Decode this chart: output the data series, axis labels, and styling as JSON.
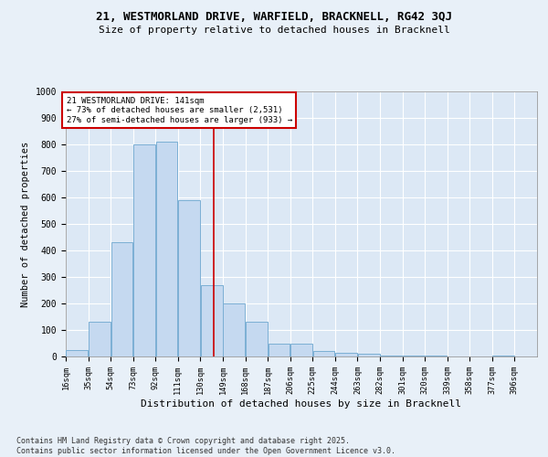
{
  "title1": "21, WESTMORLAND DRIVE, WARFIELD, BRACKNELL, RG42 3QJ",
  "title2": "Size of property relative to detached houses in Bracknell",
  "xlabel": "Distribution of detached houses by size in Bracknell",
  "ylabel": "Number of detached properties",
  "bar_color": "#c5d9f0",
  "bar_edge_color": "#7bafd4",
  "background_color": "#dce8f5",
  "grid_color": "#ffffff",
  "annotation_box_color": "#cc0000",
  "vline_color": "#cc0000",
  "fig_background": "#e8f0f8",
  "bins": [
    16,
    35,
    54,
    73,
    92,
    111,
    130,
    149,
    168,
    187,
    206,
    225,
    244,
    263,
    282,
    301,
    320,
    339,
    358,
    377,
    396
  ],
  "values": [
    25,
    130,
    430,
    800,
    810,
    590,
    270,
    200,
    130,
    50,
    50,
    20,
    15,
    10,
    5,
    3,
    3,
    0,
    0,
    2
  ],
  "property_size": 141,
  "annotation_line1": "21 WESTMORLAND DRIVE: 141sqm",
  "annotation_line2": "← 73% of detached houses are smaller (2,531)",
  "annotation_line3": "27% of semi-detached houses are larger (933) →",
  "ylim": [
    0,
    1000
  ],
  "yticks": [
    0,
    100,
    200,
    300,
    400,
    500,
    600,
    700,
    800,
    900,
    1000
  ],
  "footnote": "Contains HM Land Registry data © Crown copyright and database right 2025.\nContains public sector information licensed under the Open Government Licence v3.0."
}
